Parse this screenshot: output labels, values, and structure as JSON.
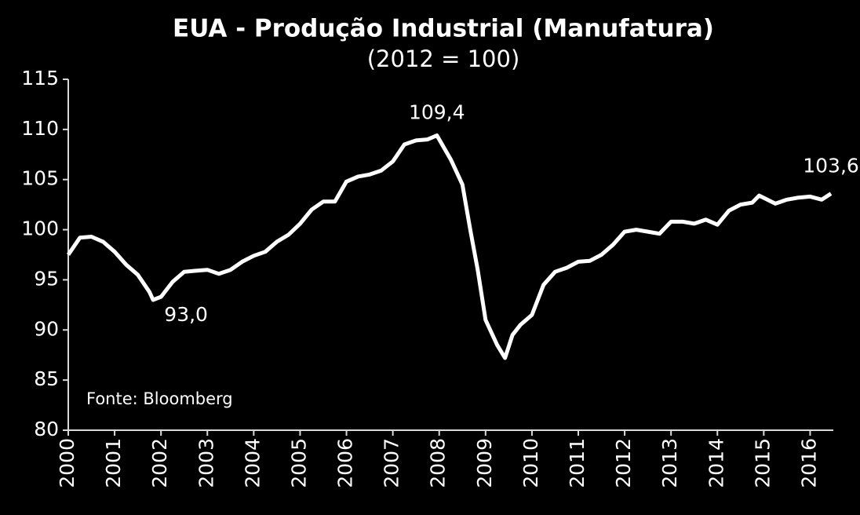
{
  "chart_data": {
    "type": "line",
    "title": "EUA - Produção Industrial (Manufatura)",
    "subtitle": "(2012 = 100)",
    "source": "Fonte: Bloomberg",
    "x": [
      2000.0,
      2000.25,
      2000.5,
      2000.75,
      2001.0,
      2001.25,
      2001.5,
      2001.75,
      2001.83,
      2002.0,
      2002.25,
      2002.5,
      2002.75,
      2003.0,
      2003.25,
      2003.5,
      2003.75,
      2004.0,
      2004.25,
      2004.5,
      2004.75,
      2005.0,
      2005.25,
      2005.5,
      2005.75,
      2006.0,
      2006.25,
      2006.5,
      2006.75,
      2007.0,
      2007.25,
      2007.5,
      2007.75,
      2007.95,
      2008.25,
      2008.5,
      2008.67,
      2008.83,
      2009.0,
      2009.25,
      2009.42,
      2009.58,
      2009.75,
      2010.0,
      2010.25,
      2010.5,
      2010.75,
      2011.0,
      2011.25,
      2011.5,
      2011.75,
      2012.0,
      2012.25,
      2012.5,
      2012.75,
      2013.0,
      2013.25,
      2013.5,
      2013.75,
      2014.0,
      2014.25,
      2014.5,
      2014.75,
      2014.9,
      2015.25,
      2015.5,
      2015.75,
      2016.0,
      2016.25,
      2016.45
    ],
    "series": [
      {
        "color": "#ffffff",
        "values": [
          97.5,
          99.2,
          99.3,
          98.8,
          97.8,
          96.5,
          95.5,
          93.8,
          93.0,
          93.3,
          94.8,
          95.8,
          95.9,
          96.0,
          95.6,
          96.0,
          96.8,
          97.4,
          97.8,
          98.8,
          99.5,
          100.6,
          102.0,
          102.8,
          102.8,
          104.8,
          105.3,
          105.5,
          105.9,
          106.8,
          108.5,
          108.9,
          109.0,
          109.4,
          107.0,
          104.5,
          100.0,
          96.0,
          91.0,
          88.5,
          87.2,
          89.5,
          90.5,
          91.5,
          94.5,
          95.8,
          96.2,
          96.8,
          96.9,
          97.5,
          98.5,
          99.8,
          100.0,
          99.8,
          99.6,
          100.8,
          100.8,
          100.6,
          101.0,
          100.5,
          101.9,
          102.5,
          102.7,
          103.4,
          102.6,
          103.0,
          103.2,
          103.3,
          103.0,
          103.6
        ]
      }
    ],
    "annotations": [
      {
        "label": "93,0",
        "value": 93.0,
        "x": 2001.83
      },
      {
        "label": "109,4",
        "value": 109.4,
        "x": 2007.95
      },
      {
        "label": "103,6",
        "value": 103.6,
        "x": 2016.45
      }
    ],
    "xlim": [
      2000,
      2016.5
    ],
    "xticks": [
      2000,
      2001,
      2002,
      2003,
      2004,
      2005,
      2006,
      2007,
      2008,
      2009,
      2010,
      2011,
      2012,
      2013,
      2014,
      2015,
      2016
    ],
    "ylim": [
      80,
      115
    ],
    "yticks": [
      80,
      85,
      90,
      95,
      100,
      105,
      110,
      115
    ]
  }
}
